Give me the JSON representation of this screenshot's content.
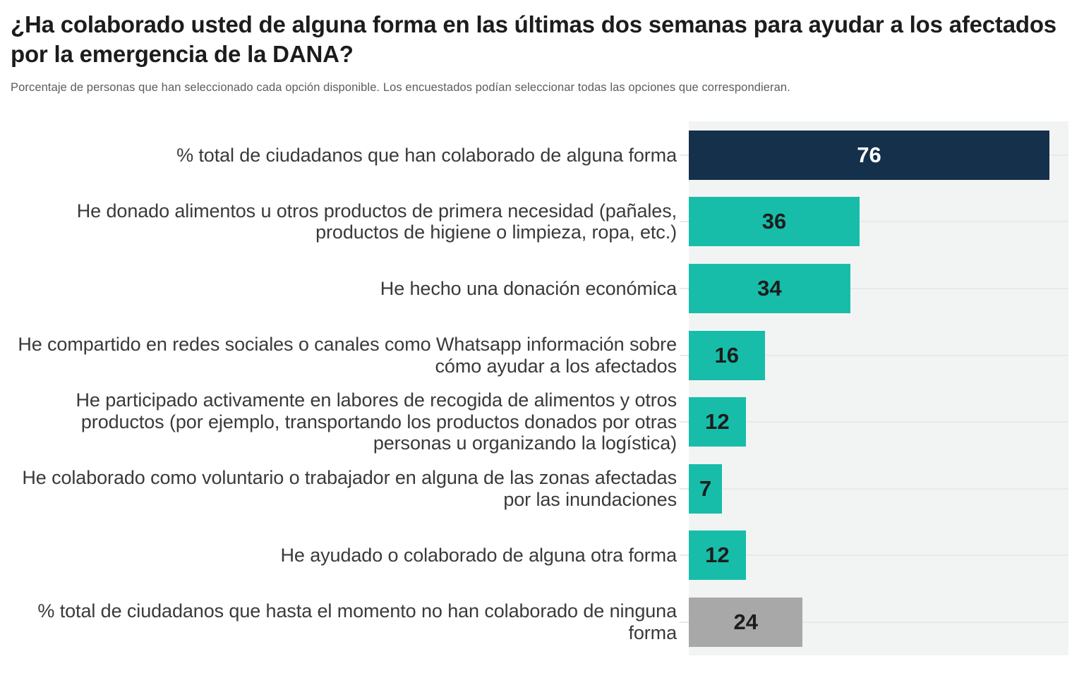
{
  "chart_data": {
    "type": "bar",
    "orientation": "horizontal",
    "title": "¿Ha colaborado usted de alguna forma en las últimas dos semanas para ayudar a los afectados por la emergencia de la DANA?",
    "subtitle": "Porcentaje de personas que han seleccionado cada opción disponible. Los encuestados podían seleccionar todas las opciones que correspondieran.",
    "categories": [
      "% total de ciudadanos que han colaborado de alguna forma",
      "He donado alimentos u otros productos de primera necesidad (pañales, productos de higiene o limpieza, ropa, etc.)",
      "He hecho una donación económica",
      "He compartido en redes sociales o canales como Whatsapp información sobre cómo ayudar a los afectados",
      "He participado activamente en labores de recogida de alimentos y otros productos (por ejemplo, transportando los productos donados por otras personas u organizando la logística)",
      "He colaborado como voluntario o trabajador en alguna de las zonas afectadas por las inundaciones",
      "He ayudado o colaborado de alguna otra forma",
      "% total de ciudadanos que hasta el momento no han colaborado de ninguna forma"
    ],
    "values": [
      76,
      36,
      34,
      16,
      12,
      7,
      12,
      24
    ],
    "value_labels": [
      "76",
      "36",
      "34",
      "16",
      "12",
      "7",
      "12",
      "24"
    ],
    "bar_colors": [
      "#14304a",
      "#17bda9",
      "#17bda9",
      "#17bda9",
      "#17bda9",
      "#17bda9",
      "#17bda9",
      "#a8a8a8"
    ],
    "value_text_colors": [
      "#ffffff",
      "#1d1d1d",
      "#1d1d1d",
      "#1d1d1d",
      "#1d1d1d",
      "#1d1d1d",
      "#1d1d1d",
      "#1d1d1d"
    ],
    "xlabel": "",
    "ylabel": "",
    "xlim": [
      0,
      80
    ],
    "grid": "faint horizontal line at each category center",
    "legend": "none",
    "colors": {
      "highlight_navy": "#14304a",
      "series_teal": "#17bda9",
      "muted_gray": "#a8a8a8",
      "plot_background": "#f2f4f4",
      "gridline": "#e7eaea",
      "title_text": "#1c1c1c",
      "subtitle_text": "#5c5c5c",
      "label_text": "#3a3a3a"
    }
  }
}
